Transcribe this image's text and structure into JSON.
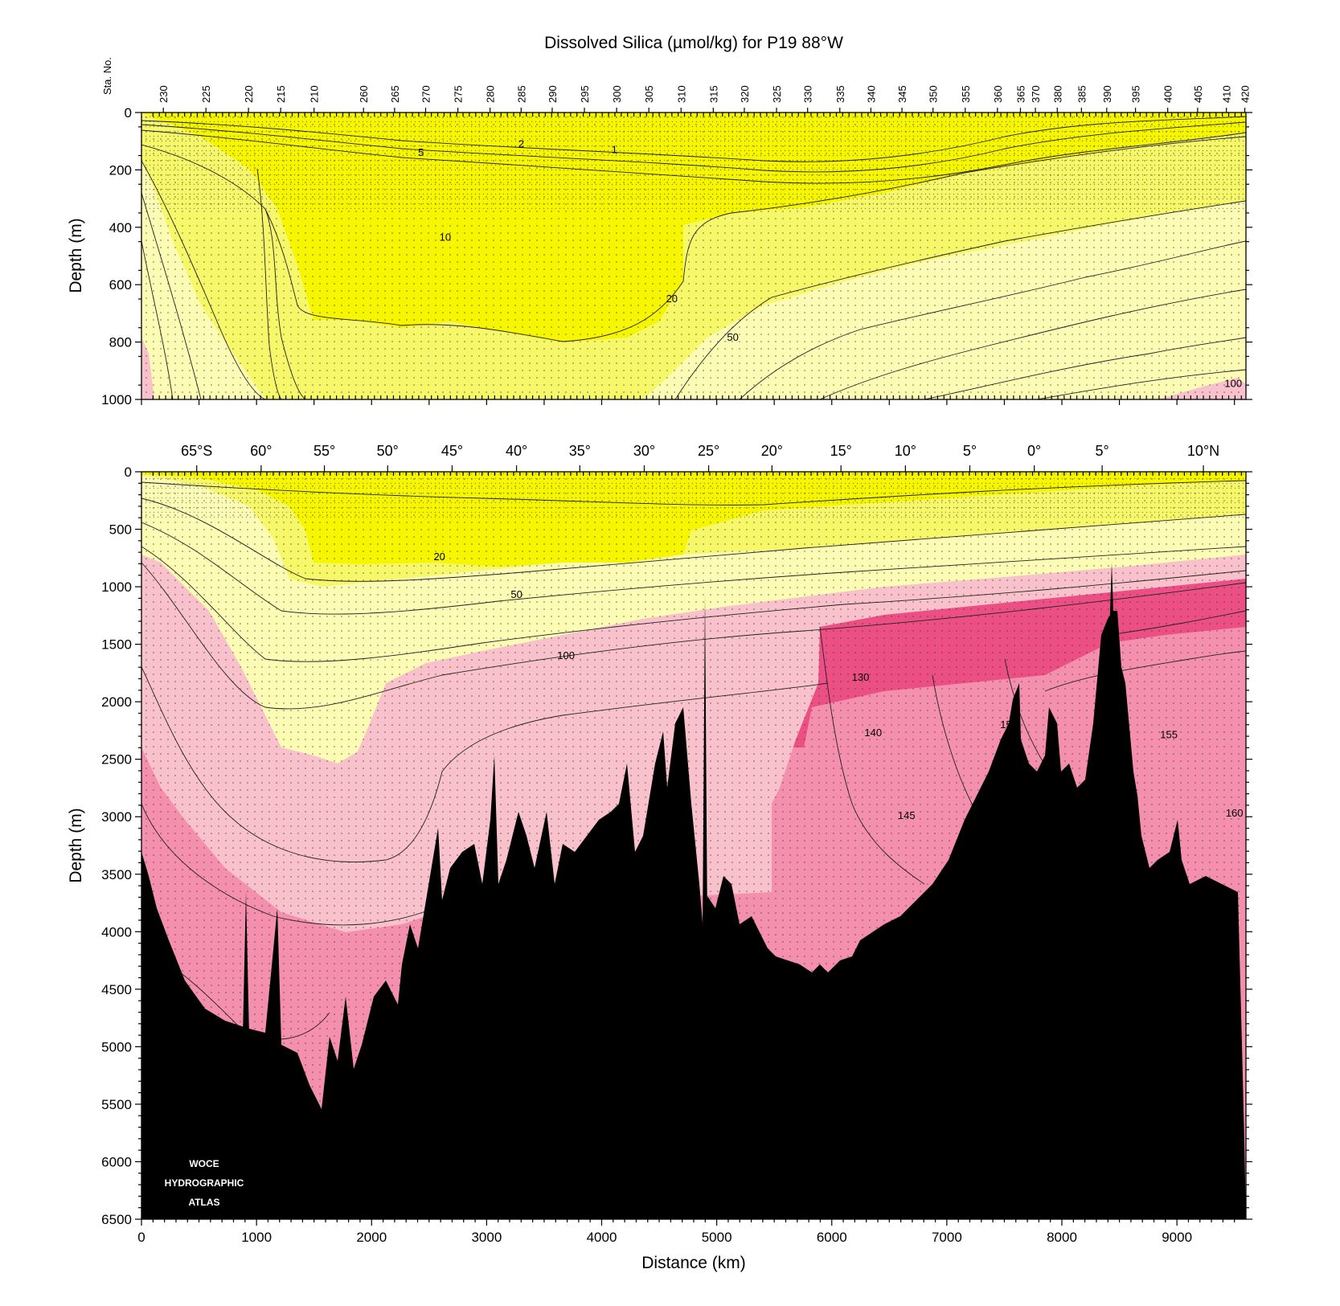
{
  "chart_data": [
    {
      "type": "heatmap",
      "panel": "upper",
      "title": "Dissolved Silica (µmol/kg) for P19 88°W",
      "ylabel": "Depth (m)",
      "ylim": [
        1000,
        0
      ],
      "xlim": [
        0,
        9600
      ],
      "yticks": [
        0,
        200,
        400,
        600,
        800,
        1000
      ],
      "station_axis_label": "Sta. No.",
      "stations": [
        {
          "label": "230",
          "x": 190
        },
        {
          "label": "225",
          "x": 560
        },
        {
          "label": "220",
          "x": 930
        },
        {
          "label": "215",
          "x": 1210
        },
        {
          "label": "210",
          "x": 1500
        },
        {
          "label": "260",
          "x": 1930
        },
        {
          "label": "265",
          "x": 2200
        },
        {
          "label": "270",
          "x": 2470
        },
        {
          "label": "275",
          "x": 2750
        },
        {
          "label": "280",
          "x": 3030
        },
        {
          "label": "285",
          "x": 3300
        },
        {
          "label": "290",
          "x": 3570
        },
        {
          "label": "295",
          "x": 3850
        },
        {
          "label": "300",
          "x": 4130
        },
        {
          "label": "305",
          "x": 4410
        },
        {
          "label": "310",
          "x": 4690
        },
        {
          "label": "315",
          "x": 4970
        },
        {
          "label": "320",
          "x": 5240
        },
        {
          "label": "325",
          "x": 5520
        },
        {
          "label": "330",
          "x": 5790
        },
        {
          "label": "335",
          "x": 6070
        },
        {
          "label": "340",
          "x": 6340
        },
        {
          "label": "345",
          "x": 6610
        },
        {
          "label": "350",
          "x": 6880
        },
        {
          "label": "355",
          "x": 7160
        },
        {
          "label": "360",
          "x": 7440
        },
        {
          "label": "365",
          "x": 7640
        },
        {
          "label": "370",
          "x": 7770
        },
        {
          "label": "380",
          "x": 7960
        },
        {
          "label": "385",
          "x": 8170
        },
        {
          "label": "390",
          "x": 8390
        },
        {
          "label": "395",
          "x": 8640
        },
        {
          "label": "400",
          "x": 8920
        },
        {
          "label": "405",
          "x": 9180
        },
        {
          "label": "410",
          "x": 9430
        },
        {
          "label": "420",
          "x": 9590
        }
      ],
      "contour_labels": [
        {
          "text": "5",
          "x": 2430,
          "y": 140
        },
        {
          "text": "2",
          "x": 3300,
          "y": 110
        },
        {
          "text": "1",
          "x": 4110,
          "y": 130
        },
        {
          "text": "10",
          "x": 2640,
          "y": 435
        },
        {
          "text": "20",
          "x": 4610,
          "y": 650
        },
        {
          "text": "50",
          "x": 5140,
          "y": 785
        },
        {
          "text": "100",
          "x": 9490,
          "y": 945
        }
      ]
    },
    {
      "type": "heatmap",
      "panel": "lower",
      "xlabel": "Distance (km)",
      "ylabel": "Depth (m)",
      "xlim": [
        0,
        9600
      ],
      "ylim": [
        6500,
        0
      ],
      "xticks": [
        0,
        1000,
        2000,
        3000,
        4000,
        5000,
        6000,
        7000,
        8000,
        9000
      ],
      "yticks": [
        0,
        500,
        1000,
        1500,
        2000,
        2500,
        3000,
        3500,
        4000,
        4500,
        5000,
        5500,
        6000,
        6500
      ],
      "latitudes": [
        {
          "label": "65°S",
          "x": 480
        },
        {
          "label": "60°",
          "x": 1040
        },
        {
          "label": "55°",
          "x": 1590
        },
        {
          "label": "50°",
          "x": 2140
        },
        {
          "label": "45°",
          "x": 2700
        },
        {
          "label": "40°",
          "x": 3260
        },
        {
          "label": "35°",
          "x": 3810
        },
        {
          "label": "30°",
          "x": 4370
        },
        {
          "label": "25°",
          "x": 4930
        },
        {
          "label": "20°",
          "x": 5480
        },
        {
          "label": "15°",
          "x": 6080
        },
        {
          "label": "10°",
          "x": 6640
        },
        {
          "label": "5°",
          "x": 7200
        },
        {
          "label": "0°",
          "x": 7760
        },
        {
          "label": "5°",
          "x": 8350
        },
        {
          "label": "10°N",
          "x": 9230
        }
      ],
      "contour_labels": [
        {
          "text": "20",
          "x": 2590,
          "y": 740
        },
        {
          "text": "50",
          "x": 3260,
          "y": 1070
        },
        {
          "text": "100",
          "x": 3690,
          "y": 1600
        },
        {
          "text": "130",
          "x": 6250,
          "y": 1790
        },
        {
          "text": "140",
          "x": 6360,
          "y": 2270
        },
        {
          "text": "150",
          "x": 7540,
          "y": 2200
        },
        {
          "text": "155",
          "x": 8930,
          "y": 2290
        },
        {
          "text": "145",
          "x": 6650,
          "y": 2990
        },
        {
          "text": "160",
          "x": 9500,
          "y": 2970
        }
      ],
      "color_bands": [
        {
          "range": "<20",
          "color": "#f6f600"
        },
        {
          "range": "20-50",
          "color": "#f7f76a"
        },
        {
          "range": "50-100",
          "color": "#fcfcb4"
        },
        {
          "range": "100-130",
          "color": "#f9c1cc"
        },
        {
          "range": "130-150",
          "color": "#f490ad"
        },
        {
          "range": ">150",
          "color": "#ec4f83"
        }
      ],
      "bathymetry_color": "#000000"
    }
  ],
  "logo": {
    "line1": "WOCE",
    "line2": "HYDROGRAPHIC",
    "line3": "ATLAS"
  }
}
